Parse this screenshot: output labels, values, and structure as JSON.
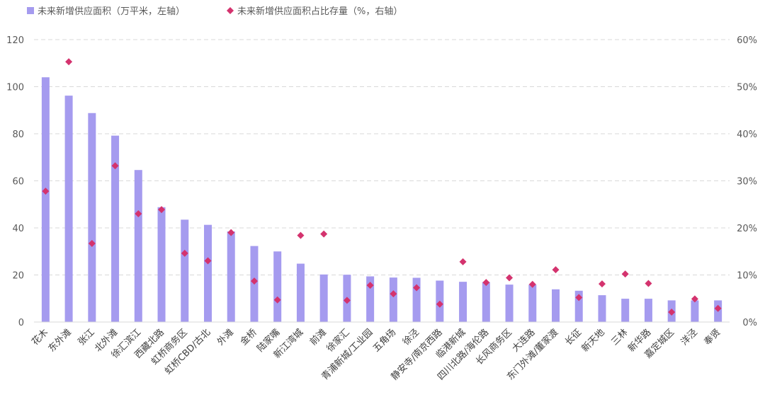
{
  "chart_data": {
    "type": "bar",
    "categories": [
      "花木",
      "东外滩",
      "张江",
      "北外滩",
      "徐汇滨江",
      "西藏北路",
      "虹桥商务区",
      "虹桥CBD/古北",
      "外滩",
      "金桥",
      "陆家嘴",
      "新江湾城",
      "前滩",
      "徐家汇",
      "青浦新城/工业园",
      "五角场",
      "徐泾",
      "静安寺/南京西路",
      "临港新城",
      "四川北路/海伦路",
      "长风商务区",
      "大连路",
      "东门外滩/董家渡",
      "长征",
      "新天地",
      "三林",
      "新华路",
      "嘉定城区",
      "洋泾",
      "奉贤"
    ],
    "series": [
      {
        "name": "未来新增供应面积（万平米，左轴）",
        "type": "bar",
        "axis": "left",
        "color": "#A59BEF",
        "values": [
          104,
          96.2,
          88.8,
          79.2,
          64.6,
          48.8,
          43.5,
          41.3,
          38.5,
          32.3,
          30.0,
          24.8,
          20.2,
          20.1,
          19.4,
          18.9,
          18.8,
          17.6,
          17.1,
          17.0,
          15.9,
          15.9,
          13.9,
          13.3,
          11.4,
          9.9,
          9.9,
          9.2,
          9.2,
          9.2
        ]
      },
      {
        "name": "未来新增供应面积占比存量（%，右轴）",
        "type": "scatter",
        "axis": "right",
        "color": "#D4336E",
        "values": [
          27.8,
          55.3,
          16.7,
          33.2,
          23.0,
          23.9,
          14.6,
          13.0,
          19.0,
          8.7,
          4.7,
          18.4,
          18.7,
          4.6,
          7.8,
          6.0,
          7.3,
          3.8,
          12.8,
          8.4,
          9.4,
          8.0,
          11.1,
          5.2,
          8.1,
          10.2,
          8.2,
          2.1,
          4.9,
          2.9
        ]
      }
    ],
    "y_left": {
      "min": 0,
      "max": 120,
      "ticks": [
        "0",
        "20",
        "40",
        "60",
        "80",
        "100",
        "120"
      ]
    },
    "y_right": {
      "min": 0,
      "max": 60,
      "ticks": [
        "0%",
        "10%",
        "20%",
        "30%",
        "40%",
        "50%",
        "60%"
      ]
    },
    "grid": true,
    "legend": "top-left"
  }
}
